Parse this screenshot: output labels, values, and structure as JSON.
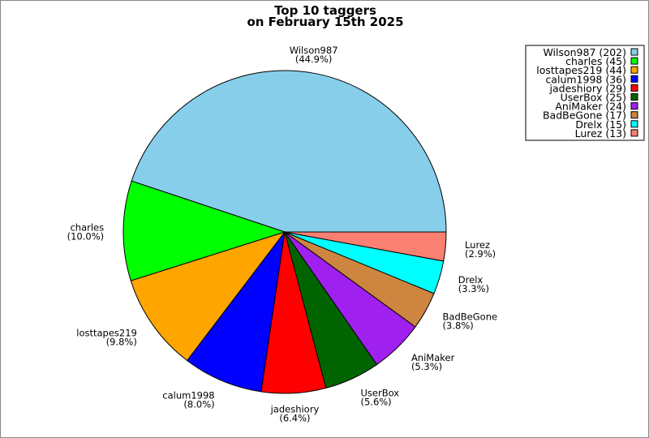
{
  "chart_data": {
    "type": "pie",
    "title": [
      "Top 10 taggers",
      "on February 15th 2025"
    ],
    "legend_position": "top-right",
    "slices": [
      {
        "label": "Wilson987",
        "value": 202,
        "percent": "44.9%",
        "color": "#87ceeb"
      },
      {
        "label": "charles",
        "value": 45,
        "percent": "10.0%",
        "color": "#00ff00"
      },
      {
        "label": "losttapes219",
        "value": 44,
        "percent": "9.8%",
        "color": "#ffa500"
      },
      {
        "label": "calum1998",
        "value": 36,
        "percent": "8.0%",
        "color": "#0000ff"
      },
      {
        "label": "jadeshiory",
        "value": 29,
        "percent": "6.4%",
        "color": "#ff0000"
      },
      {
        "label": "UserBox",
        "value": 25,
        "percent": "5.6%",
        "color": "#006400"
      },
      {
        "label": "AniMaker",
        "value": 24,
        "percent": "5.3%",
        "color": "#a020f0"
      },
      {
        "label": "BadBeGone",
        "value": 17,
        "percent": "3.8%",
        "color": "#cd853f"
      },
      {
        "label": "Drelx",
        "value": 15,
        "percent": "3.3%",
        "color": "#00ffff"
      },
      {
        "label": "Lurez",
        "value": 13,
        "percent": "2.9%",
        "color": "#fa8072"
      }
    ]
  }
}
